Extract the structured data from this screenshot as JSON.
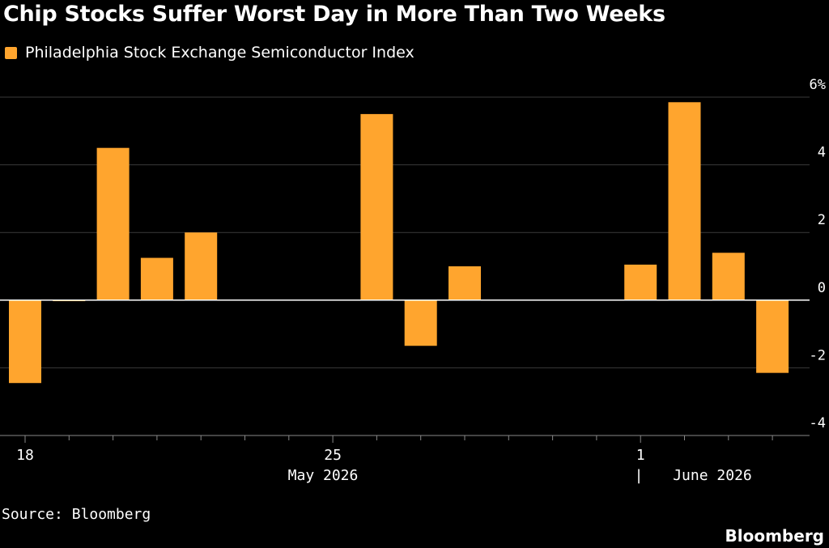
{
  "header": {
    "title": "Chip Stocks Suffer Worst Day in More Than Two Weeks"
  },
  "legend": {
    "label": "Philadelphia Stock Exchange Semiconductor Index",
    "color": "#ffa52e"
  },
  "footer": {
    "source": "Source: Bloomberg",
    "brand": "Bloomberg"
  },
  "chart_data": {
    "type": "bar",
    "categories": [
      "2026-05-18",
      "2026-05-19",
      "2026-05-20",
      "2026-05-21",
      "2026-05-22",
      "2026-05-25",
      "2026-05-26",
      "2026-05-27",
      "2026-05-28",
      "2026-05-29",
      "2026-06-01",
      "2026-06-02",
      "2026-06-03",
      "2026-06-04"
    ],
    "series": [
      {
        "name": "Philadelphia Stock Exchange Semiconductor Index",
        "values": [
          -2.45,
          -0.03,
          4.5,
          1.25,
          2.0,
          null,
          5.5,
          -1.35,
          1.0,
          null,
          1.05,
          5.85,
          1.4,
          -2.15
        ]
      }
    ],
    "ylabel": "",
    "ylim": [
      -4,
      6
    ],
    "yticks": [
      6,
      4,
      2,
      0,
      -2,
      -4
    ],
    "ytick_labels": [
      "6%",
      "4",
      "2",
      "0",
      "-2",
      "-4"
    ],
    "xtick_labels": [
      {
        "date": "2026-05-18",
        "label": "18"
      },
      {
        "date": "2026-05-25",
        "label": "25"
      },
      {
        "date": "2026-06-01",
        "label": "1"
      }
    ],
    "month_labels": [
      {
        "label": "May 2026"
      },
      {
        "label": "June 2026"
      }
    ],
    "month_divider": "|",
    "grid": true,
    "legend_position": "top-left",
    "colors": {
      "bar": "#ffa52e",
      "grid": "#3a3a3a",
      "zero": "#ffffff",
      "text": "#ffffff"
    }
  }
}
